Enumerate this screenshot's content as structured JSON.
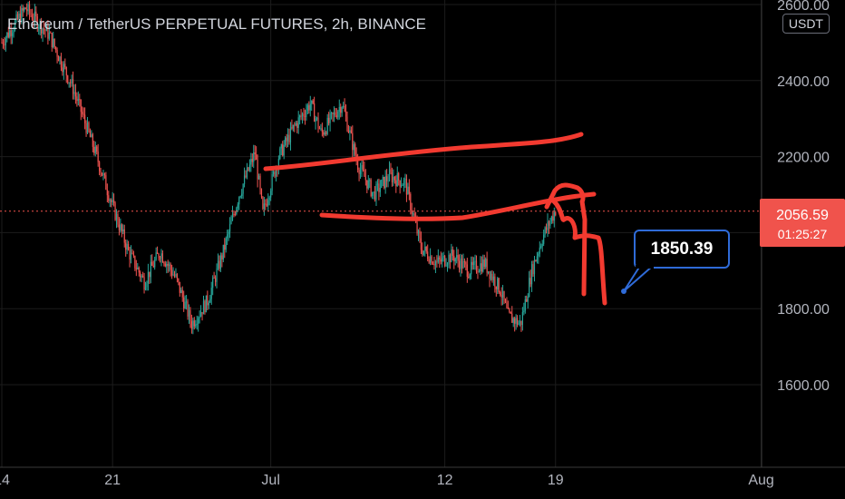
{
  "header": {
    "title": "Ethereum / TetherUS PERPETUAL FUTURES, 2h, BINANCE",
    "currency_badge": "USDT"
  },
  "price_tag": {
    "price": "2056.59",
    "countdown": "01:25:27",
    "color": "#f0534c"
  },
  "callout": {
    "label": "1850.39",
    "border_color": "#2f6bd8"
  },
  "colors": {
    "up": "#26a69a",
    "down": "#ef5350",
    "drawing": "#f23a30",
    "grid": "#1c1c1c",
    "axis_text": "#b2b5be"
  },
  "chart_data": {
    "type": "candlestick",
    "symbol": "ETHUSDT",
    "interval": "2h",
    "ylim": [
      1400,
      2640
    ],
    "yticks": [
      1600,
      1800,
      2000,
      2200,
      2400,
      2600
    ],
    "ytick_labels": [
      "1600.00",
      "1800.00",
      "",
      "2200.00",
      "2400.00",
      "2600.00"
    ],
    "xticks": [
      "14",
      "21",
      "Jul",
      "12",
      "19",
      "Aug"
    ],
    "last_price": 2056.59,
    "trend": [
      {
        "x": 0.0,
        "y": 2500
      },
      {
        "x": 1.5,
        "y": 2590
      },
      {
        "x": 3.0,
        "y": 2520
      },
      {
        "x": 4.5,
        "y": 2380
      },
      {
        "x": 6.0,
        "y": 2200
      },
      {
        "x": 7.0,
        "y": 2070
      },
      {
        "x": 8.0,
        "y": 1950
      },
      {
        "x": 9.0,
        "y": 1870
      },
      {
        "x": 10.0,
        "y": 1950
      },
      {
        "x": 11.0,
        "y": 1880
      },
      {
        "x": 12.0,
        "y": 1760
      },
      {
        "x": 13.0,
        "y": 1820
      },
      {
        "x": 14.0,
        "y": 1950
      },
      {
        "x": 15.0,
        "y": 2100
      },
      {
        "x": 16.0,
        "y": 2210
      },
      {
        "x": 16.5,
        "y": 2050
      },
      {
        "x": 17.5,
        "y": 2200
      },
      {
        "x": 18.5,
        "y": 2280
      },
      {
        "x": 19.5,
        "y": 2340
      },
      {
        "x": 20.2,
        "y": 2260
      },
      {
        "x": 21.5,
        "y": 2340
      },
      {
        "x": 22.5,
        "y": 2180
      },
      {
        "x": 23.5,
        "y": 2100
      },
      {
        "x": 24.5,
        "y": 2150
      },
      {
        "x": 25.5,
        "y": 2130
      },
      {
        "x": 26.5,
        "y": 1960
      },
      {
        "x": 27.5,
        "y": 1920
      },
      {
        "x": 28.5,
        "y": 1940
      },
      {
        "x": 29.5,
        "y": 1900
      },
      {
        "x": 30.5,
        "y": 1920
      },
      {
        "x": 31.5,
        "y": 1850
      },
      {
        "x": 32.0,
        "y": 1780
      },
      {
        "x": 32.8,
        "y": 1760
      },
      {
        "x": 33.5,
        "y": 1900
      },
      {
        "x": 34.2,
        "y": 1990
      },
      {
        "x": 35.0,
        "y": 2060
      }
    ]
  }
}
